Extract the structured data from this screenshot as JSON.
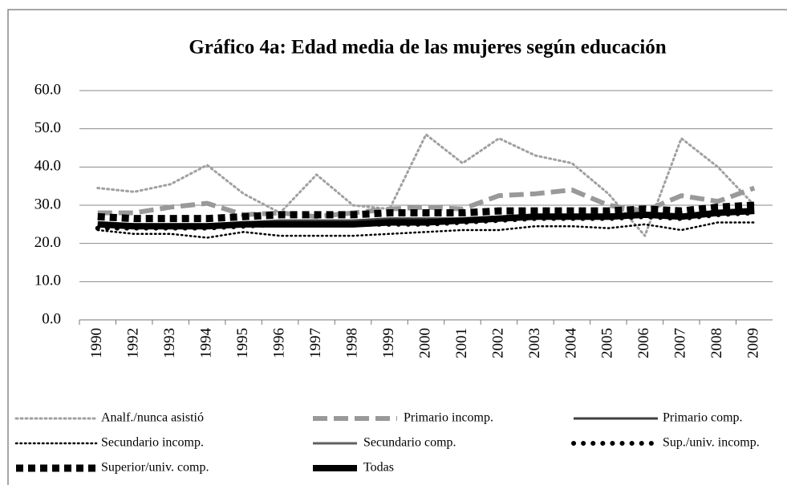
{
  "chart_data": {
    "type": "line",
    "title": "Gráfico 4a: Edad media de las mujeres según educación",
    "categories": [
      "1990",
      "1992",
      "1993",
      "1994",
      "1995",
      "1996",
      "1997",
      "1998",
      "1999",
      "2000",
      "2001",
      "2002",
      "2003",
      "2004",
      "2005",
      "2006",
      "2007",
      "2008",
      "2009"
    ],
    "series": [
      {
        "name": "Analf./nunca asistió",
        "color": "#a0a0a0",
        "values": [
          34.5,
          33.5,
          35.5,
          40.5,
          33,
          28,
          38,
          30,
          29,
          48.5,
          41,
          47.5,
          43,
          41,
          33,
          22,
          47.5,
          40,
          30
        ]
      },
      {
        "name": "Primario incomp.",
        "color": "#999999",
        "values": [
          28,
          28,
          29.5,
          30.5,
          27.5,
          28,
          27,
          28,
          29,
          29.5,
          29,
          32.5,
          33,
          34,
          30,
          28.5,
          32.5,
          31,
          34.5
        ]
      },
      {
        "name": "Primario comp.",
        "color": "#404040",
        "values": [
          25,
          25,
          25,
          25,
          25.5,
          26,
          26,
          26,
          26.5,
          26.5,
          26.5,
          27,
          27.5,
          27.5,
          27.5,
          28,
          27.5,
          28,
          28.5
        ]
      },
      {
        "name": "Secundario incomp.",
        "color": "#000000",
        "values": [
          23.5,
          22.5,
          22.5,
          21.5,
          23,
          22,
          22,
          22,
          22.5,
          23,
          23.5,
          23.5,
          24.5,
          24.5,
          24,
          25,
          23.5,
          25.5,
          25.5
        ]
      },
      {
        "name": "Secundario comp.",
        "color": "#606060",
        "values": [
          24.5,
          24.5,
          24.5,
          24.5,
          25,
          25,
          25,
          25,
          25,
          25,
          25.5,
          26,
          26.5,
          26.5,
          26.5,
          27,
          26.5,
          27.5,
          28
        ]
      },
      {
        "name": "Sup./univ. incomp.",
        "color": "#000000",
        "values": [
          24,
          24,
          24,
          24,
          24.5,
          25,
          25,
          25,
          25,
          25,
          25.5,
          26,
          26.5,
          26.5,
          26.5,
          27,
          26.5,
          27.5,
          28
        ]
      },
      {
        "name": "Superior/univ. comp.",
        "color": "#000000",
        "values": [
          27,
          26.5,
          26.5,
          26.5,
          27,
          27.5,
          27.5,
          27.5,
          28,
          28,
          28,
          28.5,
          28.5,
          28.5,
          28.5,
          29,
          28.5,
          29.5,
          30
        ]
      },
      {
        "name": "Todas",
        "color": "#000000",
        "values": [
          25,
          24.5,
          24.5,
          24.5,
          25,
          25,
          25,
          25,
          25.5,
          25.5,
          26,
          26.5,
          27,
          27,
          27,
          27.5,
          27,
          28,
          28.5
        ]
      }
    ],
    "ylim": [
      0,
      60
    ],
    "yticks": [
      {
        "value": 0,
        "label": "0.0"
      },
      {
        "value": 10,
        "label": "10.0"
      },
      {
        "value": 20,
        "label": "20.0"
      },
      {
        "value": 30,
        "label": "30.0"
      },
      {
        "value": 40,
        "label": "40.0"
      },
      {
        "value": 50,
        "label": "50.0"
      },
      {
        "value": 60,
        "label": "60.0"
      }
    ],
    "grid": true
  }
}
